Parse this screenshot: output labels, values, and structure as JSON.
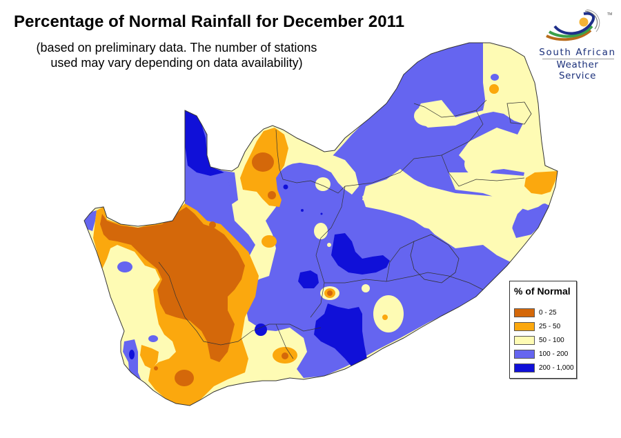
{
  "header": {
    "title": "Percentage of Normal Rainfall for December 2011",
    "subtitle_line1": "(based on preliminary data. The number of stations",
    "subtitle_line2": "used may vary depending on data availability)"
  },
  "logo": {
    "line1": "South African",
    "line2": "Weather Service",
    "trademark": "TM"
  },
  "legend": {
    "title": "% of Normal",
    "items": [
      {
        "label": "0 - 25",
        "color": "#d4680a"
      },
      {
        "label": "25 - 50",
        "color": "#fba80e"
      },
      {
        "label": "50 - 100",
        "color": "#fefbb4"
      },
      {
        "label": "100 - 200",
        "color": "#6565f0"
      },
      {
        "label": "200 - 1,000",
        "color": "#1010d8"
      }
    ]
  },
  "colors": {
    "c0_25": "#d4680a",
    "c25_50": "#fba80e",
    "c50_100": "#fefbb4",
    "c100_200": "#6565f0",
    "c200_1000": "#1010d8",
    "border": "#333333"
  }
}
